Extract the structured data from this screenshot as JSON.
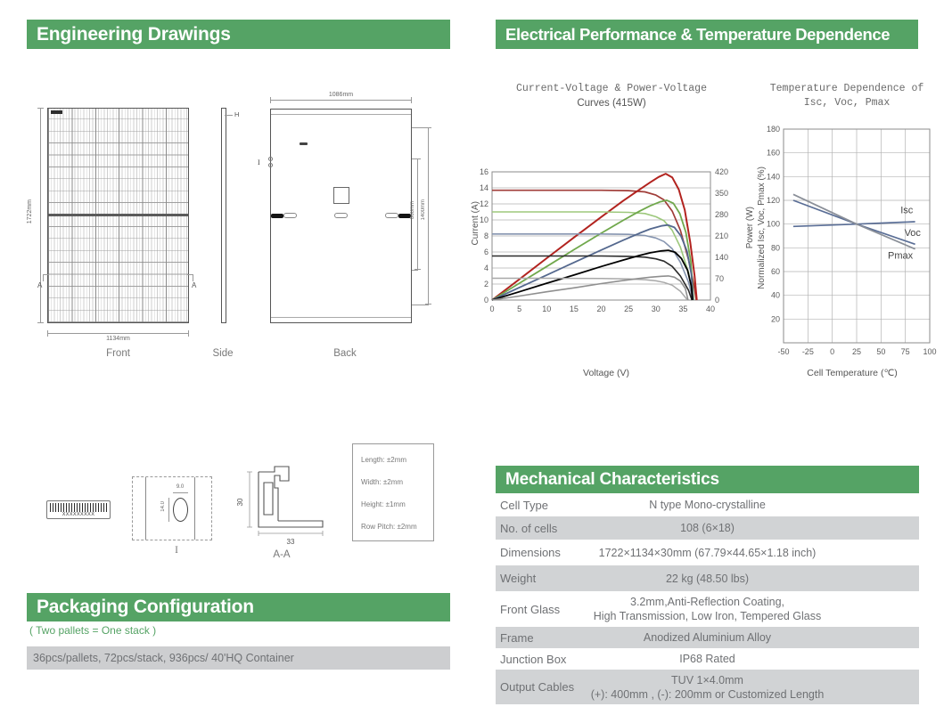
{
  "colors": {
    "green": "#55a365",
    "row_grey": "#d1d3d5",
    "bar_grey": "#cdced0",
    "text_grey": "#6f7174"
  },
  "sections": {
    "engineering": {
      "title": "Engineering Drawings"
    },
    "electrical": {
      "title": "Electrical Performance & Temperature Dependence"
    },
    "mechanical": {
      "title": "Mechanical Characteristics"
    },
    "packaging": {
      "title": "Packaging Configuration",
      "note": "( Two pallets = One stack )",
      "detail": "36pcs/pallets, 72pcs/stack, 936pcs/ 40'HQ Container"
    }
  },
  "drawings": {
    "front": {
      "label": "Front",
      "height_dim": "1722mm",
      "width_dim": "1134mm",
      "section_marker": "A"
    },
    "side": {
      "label": "Side",
      "marker": "H"
    },
    "back": {
      "label": "Back",
      "width_dim": "1086mm",
      "hole_dim_inner": "860mm",
      "hole_dim_outer": "1400mm",
      "marker": "I"
    },
    "detail": {
      "label": "I",
      "slot_width": "9.0",
      "slot_height": "14.0"
    },
    "section": {
      "label": "A-A",
      "height": "30",
      "width": "33"
    },
    "serial_label": {
      "text": "XXXXXXXXX"
    },
    "tolerances": {
      "length": "Length: ±2mm",
      "width": "Width: ±2mm",
      "height": "Height: ±1mm",
      "row_pitch": "Row Pitch: ±2mm"
    }
  },
  "chart_data": [
    {
      "type": "line",
      "title": "Current-Voltage & Power-Voltage",
      "subtitle": "Curves (415W)",
      "xlabel": "Voltage (V)",
      "ylabel": "Current (A)",
      "ylabel_right": "Power (W)",
      "xlim": [
        0,
        40
      ],
      "xticks": [
        0,
        5,
        10,
        15,
        20,
        25,
        30,
        35,
        40
      ],
      "ylim": [
        0,
        16
      ],
      "yticks": [
        0,
        2,
        4,
        6,
        8,
        10,
        12,
        14,
        16
      ],
      "ylim_right": [
        0,
        420
      ],
      "yticks_right": [
        0,
        70,
        140,
        210,
        280,
        350,
        420
      ],
      "grid": "h",
      "legend": "none",
      "series": [
        {
          "name": "I-V curve 1",
          "axis": "left",
          "color": "#a03c38",
          "width": 1.7,
          "points": [
            [
              0,
              13.7
            ],
            [
              10,
              13.7
            ],
            [
              20,
              13.7
            ],
            [
              25,
              13.65
            ],
            [
              28,
              13.5
            ],
            [
              30,
              13.1
            ],
            [
              31.5,
              12.5
            ],
            [
              33,
              11.1
            ],
            [
              34.5,
              8.7
            ],
            [
              36,
              5.0
            ],
            [
              37,
              1.8
            ],
            [
              37.4,
              0
            ]
          ]
        },
        {
          "name": "P-V curve 1",
          "axis": "right",
          "color": "#b2231f",
          "width": 2,
          "points": [
            [
              0,
              0
            ],
            [
              5,
              68
            ],
            [
              10,
              137
            ],
            [
              15,
              205
            ],
            [
              20,
              272
            ],
            [
              24,
              325
            ],
            [
              27,
              362
            ],
            [
              29,
              386
            ],
            [
              30.5,
              403
            ],
            [
              31.8,
              414
            ],
            [
              33,
              402
            ],
            [
              34.2,
              362
            ],
            [
              35.3,
              295
            ],
            [
              36.3,
              190
            ],
            [
              37.1,
              80
            ],
            [
              37.5,
              0
            ]
          ]
        },
        {
          "name": "I-V curve 2",
          "axis": "left",
          "color": "#9dc87c",
          "width": 1.6,
          "points": [
            [
              0,
              11.0
            ],
            [
              10,
              11.0
            ],
            [
              20,
              11.0
            ],
            [
              25,
              10.95
            ],
            [
              28,
              10.8
            ],
            [
              30,
              10.4
            ],
            [
              31.5,
              9.9
            ],
            [
              33,
              8.7
            ],
            [
              34.5,
              6.6
            ],
            [
              36,
              3.4
            ],
            [
              36.9,
              0
            ]
          ]
        },
        {
          "name": "P-V curve 2",
          "axis": "right",
          "color": "#70a84c",
          "width": 1.8,
          "points": [
            [
              0,
              0
            ],
            [
              5,
              55
            ],
            [
              10,
              110
            ],
            [
              15,
              165
            ],
            [
              20,
              219
            ],
            [
              24,
              261
            ],
            [
              27,
              291
            ],
            [
              29,
              309
            ],
            [
              30.8,
              322
            ],
            [
              32,
              327
            ],
            [
              33.2,
              317
            ],
            [
              34.4,
              283
            ],
            [
              35.5,
              222
            ],
            [
              36.4,
              128
            ],
            [
              36.9,
              0
            ]
          ]
        },
        {
          "name": "I-V curve 3",
          "axis": "left",
          "color": "#8594af",
          "width": 1.6,
          "points": [
            [
              0,
              8.25
            ],
            [
              10,
              8.25
            ],
            [
              20,
              8.25
            ],
            [
              25,
              8.2
            ],
            [
              28,
              8.05
            ],
            [
              30,
              7.75
            ],
            [
              31.5,
              7.3
            ],
            [
              33,
              6.4
            ],
            [
              34.5,
              4.7
            ],
            [
              36,
              2.2
            ],
            [
              36.8,
              0
            ]
          ]
        },
        {
          "name": "P-V curve 3",
          "axis": "right",
          "color": "#54688e",
          "width": 1.8,
          "points": [
            [
              0,
              0
            ],
            [
              5,
              41
            ],
            [
              10,
              82
            ],
            [
              15,
              123
            ],
            [
              20,
              164
            ],
            [
              24,
              196
            ],
            [
              27,
              219
            ],
            [
              29,
              233
            ],
            [
              31,
              243
            ],
            [
              32.2,
              246
            ],
            [
              33.4,
              238
            ],
            [
              34.6,
              210
            ],
            [
              35.7,
              160
            ],
            [
              36.5,
              85
            ],
            [
              36.8,
              0
            ]
          ]
        },
        {
          "name": "I-V curve 4",
          "axis": "left",
          "color": "#2b2b2b",
          "width": 1.6,
          "points": [
            [
              0,
              5.5
            ],
            [
              10,
              5.5
            ],
            [
              20,
              5.5
            ],
            [
              25,
              5.45
            ],
            [
              28,
              5.35
            ],
            [
              30,
              5.15
            ],
            [
              31.5,
              4.85
            ],
            [
              33,
              4.2
            ],
            [
              34.5,
              3.0
            ],
            [
              36,
              1.2
            ],
            [
              36.6,
              0
            ]
          ]
        },
        {
          "name": "P-V curve 4",
          "axis": "right",
          "color": "#000000",
          "width": 1.8,
          "points": [
            [
              0,
              0
            ],
            [
              5,
              27
            ],
            [
              10,
              55
            ],
            [
              15,
              82
            ],
            [
              20,
              110
            ],
            [
              24,
              131
            ],
            [
              27,
              146
            ],
            [
              29,
              155
            ],
            [
              31,
              161
            ],
            [
              32.3,
              163
            ],
            [
              33.5,
              157
            ],
            [
              34.7,
              136
            ],
            [
              35.8,
              98
            ],
            [
              36.5,
              45
            ],
            [
              36.7,
              0
            ]
          ]
        },
        {
          "name": "I-V curve 5",
          "axis": "left",
          "color": "#a8a8a8",
          "width": 1.5,
          "points": [
            [
              0,
              2.72
            ],
            [
              10,
              2.72
            ],
            [
              20,
              2.7
            ],
            [
              25,
              2.65
            ],
            [
              28,
              2.55
            ],
            [
              30,
              2.4
            ],
            [
              31.5,
              2.2
            ],
            [
              33,
              1.85
            ],
            [
              34.5,
              1.1
            ],
            [
              35.8,
              0
            ]
          ]
        },
        {
          "name": "P-V curve 5",
          "axis": "right",
          "color": "#8f8f8f",
          "width": 1.6,
          "points": [
            [
              0,
              0
            ],
            [
              5,
              13
            ],
            [
              10,
              27
            ],
            [
              15,
              40
            ],
            [
              20,
              54
            ],
            [
              24,
              64
            ],
            [
              27,
              71
            ],
            [
              29,
              75
            ],
            [
              31,
              78
            ],
            [
              32.3,
              79
            ],
            [
              33.4,
              75
            ],
            [
              34.5,
              62
            ],
            [
              35.4,
              38
            ],
            [
              35.9,
              0
            ]
          ]
        }
      ]
    },
    {
      "type": "line",
      "title": "Temperature Dependence of Isc, Voc, Pmax",
      "xlabel": "Cell Temperature (℃)",
      "ylabel": "Normalized Isc, Voc, Pmax (%)",
      "xlim": [
        -50,
        100
      ],
      "xticks": [
        -50,
        -25,
        0,
        25,
        50,
        75,
        100
      ],
      "ylim": [
        0,
        180
      ],
      "yticks": [
        20,
        40,
        60,
        80,
        100,
        120,
        140,
        160,
        180
      ],
      "grid": "both",
      "legend": "inline",
      "series": [
        {
          "name": "Isc",
          "axis": "left",
          "color": "#5a6e96",
          "width": 1.7,
          "points": [
            [
              -40,
              98
            ],
            [
              25,
              100
            ],
            [
              85,
              102
            ]
          ]
        },
        {
          "name": "Voc",
          "axis": "left",
          "color": "#5a6e96",
          "width": 1.7,
          "points": [
            [
              -40,
              120
            ],
            [
              25,
              100
            ],
            [
              85,
              83
            ]
          ]
        },
        {
          "name": "Pmax",
          "axis": "left",
          "color": "#8a8f98",
          "width": 1.7,
          "points": [
            [
              -40,
              125
            ],
            [
              25,
              100
            ],
            [
              85,
              79
            ]
          ]
        }
      ],
      "annotations": [
        {
          "text": "Isc",
          "x": 70,
          "y": 109
        },
        {
          "text": "Voc",
          "x": 74,
          "y": 90
        },
        {
          "text": "Pmax",
          "x": 57,
          "y": 71
        }
      ]
    }
  ],
  "mechanical_table": {
    "rows": [
      {
        "label": "Cell Type",
        "value": "N type Mono-crystalline"
      },
      {
        "label": "No. of cells",
        "value": "108 (6×18)"
      },
      {
        "label": "Dimensions",
        "value": "1722×1134×30mm (67.79×44.65×1.18 inch)"
      },
      {
        "label": "Weight",
        "value": "22 kg (48.50 lbs)"
      },
      {
        "label": "Front Glass",
        "value": "3.2mm,Anti-Reflection Coating,",
        "value2": "High Transmission, Low Iron, Tempered Glass"
      },
      {
        "label": "Frame",
        "value": "Anodized Aluminium Alloy"
      },
      {
        "label": "Junction Box",
        "value": "IP68 Rated"
      },
      {
        "label": "Output Cables",
        "value": "TUV 1×4.0mm",
        "value2": "(+): 400mm , (-): 200mm or Customized Length"
      }
    ]
  }
}
